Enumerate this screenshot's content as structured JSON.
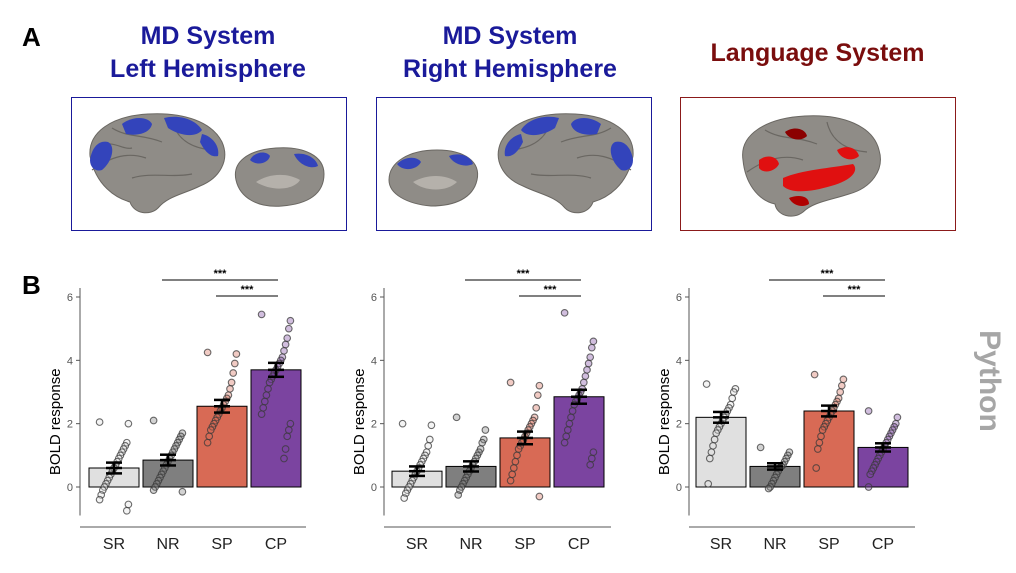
{
  "panel_labels": {
    "a": "A",
    "b": "B"
  },
  "systems": [
    {
      "title_line1": "MD System",
      "title_line2": "Left Hemisphere",
      "color": "#1a1a9a",
      "border": "#1a1a9a",
      "highlight": "#3344bb"
    },
    {
      "title_line1": "MD System",
      "title_line2": "Right Hemisphere",
      "color": "#1a1a9a",
      "border": "#1a1a9a",
      "highlight": "#3344bb"
    },
    {
      "title_line1": "Language System",
      "title_line2": "",
      "color": "#7a0d0d",
      "border": "#8b1a1a",
      "highlight": "#e01010"
    }
  ],
  "side_label": "Python",
  "colors": {
    "SR": "#e0e0e0",
    "NR": "#7f7f7f",
    "SP": "#d86a55",
    "CP": "#7b44a0",
    "brain": "#8f8c87",
    "brain_light": "#b5b1ab"
  },
  "chart_data": [
    {
      "type": "bar",
      "categories": [
        "SR",
        "NR",
        "SP",
        "CP"
      ],
      "values": [
        0.6,
        0.85,
        2.55,
        3.7
      ],
      "errors": [
        0.17,
        0.17,
        0.2,
        0.22
      ],
      "ylabel": "BOLD response",
      "yticks": [
        0,
        2,
        4,
        6
      ],
      "ylim": [
        -0.9,
        6.2
      ],
      "points": [
        [
          2.05,
          2.0,
          1.4,
          1.3,
          1.2,
          1.1,
          1.0,
          0.9,
          0.8,
          0.7,
          0.6,
          0.5,
          0.4,
          0.3,
          0.2,
          0.1,
          0.0,
          -0.1,
          -0.25,
          -0.4,
          -0.55,
          -0.75
        ],
        [
          2.1,
          1.7,
          1.6,
          1.5,
          1.4,
          1.3,
          1.2,
          1.1,
          1.0,
          0.9,
          0.8,
          0.7,
          0.6,
          0.5,
          0.4,
          0.3,
          0.2,
          0.1,
          0.0,
          -0.1,
          -0.15
        ],
        [
          4.25,
          4.2,
          3.9,
          3.6,
          3.3,
          3.1,
          2.9,
          2.8,
          2.7,
          2.6,
          2.5,
          2.4,
          2.3,
          2.2,
          2.1,
          2.0,
          1.9,
          1.8,
          1.6,
          1.4
        ],
        [
          5.45,
          5.25,
          5.0,
          4.7,
          4.5,
          4.3,
          4.1,
          4.0,
          3.9,
          3.8,
          3.7,
          3.6,
          3.5,
          3.4,
          3.3,
          3.1,
          2.9,
          2.7,
          2.5,
          2.3,
          2.0,
          1.8,
          1.6,
          1.2,
          0.9
        ]
      ],
      "sig": [
        {
          "from": 1,
          "to": 3,
          "label": "***"
        },
        {
          "from": 2,
          "to": 3,
          "label": "***"
        }
      ]
    },
    {
      "type": "bar",
      "categories": [
        "SR",
        "NR",
        "SP",
        "CP"
      ],
      "values": [
        0.5,
        0.65,
        1.55,
        2.85
      ],
      "errors": [
        0.15,
        0.16,
        0.2,
        0.22
      ],
      "ylabel": "BOLD response",
      "yticks": [
        0,
        2,
        4,
        6
      ],
      "ylim": [
        -0.9,
        6.2
      ],
      "points": [
        [
          2.0,
          1.95,
          1.5,
          1.3,
          1.1,
          1.0,
          0.9,
          0.8,
          0.7,
          0.6,
          0.5,
          0.4,
          0.3,
          0.2,
          0.1,
          0.0,
          -0.1,
          -0.2,
          -0.35
        ],
        [
          2.2,
          1.8,
          1.5,
          1.4,
          1.2,
          1.1,
          1.0,
          0.9,
          0.8,
          0.7,
          0.6,
          0.5,
          0.4,
          0.3,
          0.2,
          0.1,
          0.0,
          -0.1,
          -0.25
        ],
        [
          3.3,
          3.2,
          2.9,
          2.5,
          2.2,
          2.1,
          2.0,
          1.9,
          1.8,
          1.7,
          1.6,
          1.5,
          1.4,
          1.3,
          1.2,
          1.0,
          0.8,
          0.6,
          0.4,
          0.2,
          -0.3
        ],
        [
          5.5,
          4.6,
          4.4,
          4.1,
          3.9,
          3.7,
          3.5,
          3.3,
          3.1,
          3.0,
          2.9,
          2.8,
          2.7,
          2.6,
          2.4,
          2.2,
          2.0,
          1.8,
          1.6,
          1.4,
          1.1,
          0.9,
          0.7
        ]
      ],
      "sig": [
        {
          "from": 1,
          "to": 3,
          "label": "***"
        },
        {
          "from": 2,
          "to": 3,
          "label": "***"
        }
      ]
    },
    {
      "type": "bar",
      "categories": [
        "SR",
        "NR",
        "SP",
        "CP"
      ],
      "values": [
        2.2,
        0.65,
        2.4,
        1.25
      ],
      "errors": [
        0.17,
        0.1,
        0.17,
        0.13
      ],
      "ylabel": "BOLD response",
      "yticks": [
        0,
        2,
        4,
        6
      ],
      "ylim": [
        -0.9,
        6.2
      ],
      "points": [
        [
          3.25,
          3.1,
          3.0,
          2.8,
          2.6,
          2.5,
          2.4,
          2.3,
          2.2,
          2.1,
          2.0,
          1.9,
          1.8,
          1.7,
          1.5,
          1.3,
          1.1,
          0.9,
          0.1
        ],
        [
          1.25,
          1.1,
          1.0,
          0.9,
          0.8,
          0.7,
          0.65,
          0.6,
          0.5,
          0.4,
          0.3,
          0.2,
          0.1,
          0.0,
          -0.05
        ],
        [
          3.55,
          3.4,
          3.2,
          3.0,
          2.8,
          2.7,
          2.6,
          2.5,
          2.4,
          2.3,
          2.2,
          2.1,
          2.0,
          1.9,
          1.8,
          1.6,
          1.4,
          1.2,
          0.6
        ],
        [
          2.4,
          2.2,
          2.0,
          1.9,
          1.8,
          1.7,
          1.6,
          1.5,
          1.4,
          1.3,
          1.2,
          1.1,
          1.0,
          0.9,
          0.8,
          0.7,
          0.6,
          0.5,
          0.4,
          0.0
        ]
      ],
      "sig": [
        {
          "from": 1,
          "to": 3,
          "label": "***"
        },
        {
          "from": 2,
          "to": 3,
          "label": "***"
        }
      ]
    }
  ]
}
